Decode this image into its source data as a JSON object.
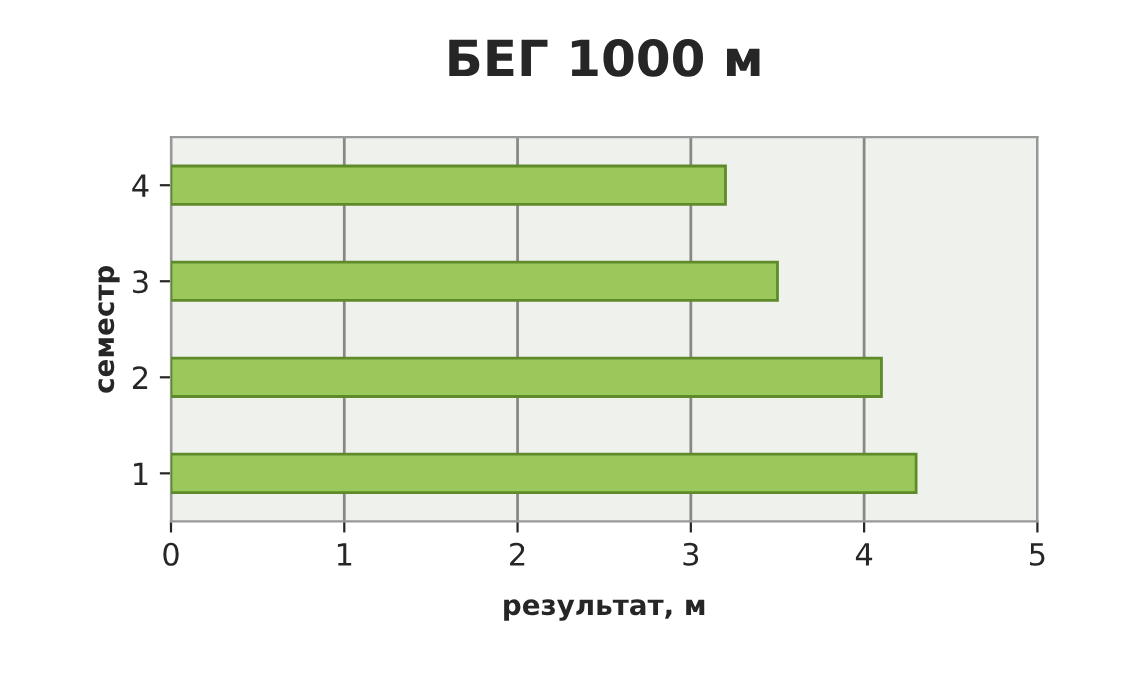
{
  "chart_data": {
    "type": "bar",
    "orientation": "horizontal",
    "title": "БЕГ 1000 м",
    "xlabel": "результат, м",
    "ylabel": "семестр",
    "categories": [
      "4",
      "3",
      "2",
      "1"
    ],
    "series": [
      {
        "color": "#9bc85a",
        "values": [
          3.2,
          3.5,
          4.1,
          4.3
        ]
      }
    ],
    "xlim": [
      0,
      5
    ],
    "xticks": [
      0,
      1,
      2,
      3,
      4,
      5
    ],
    "grid": "x",
    "legend": false
  }
}
